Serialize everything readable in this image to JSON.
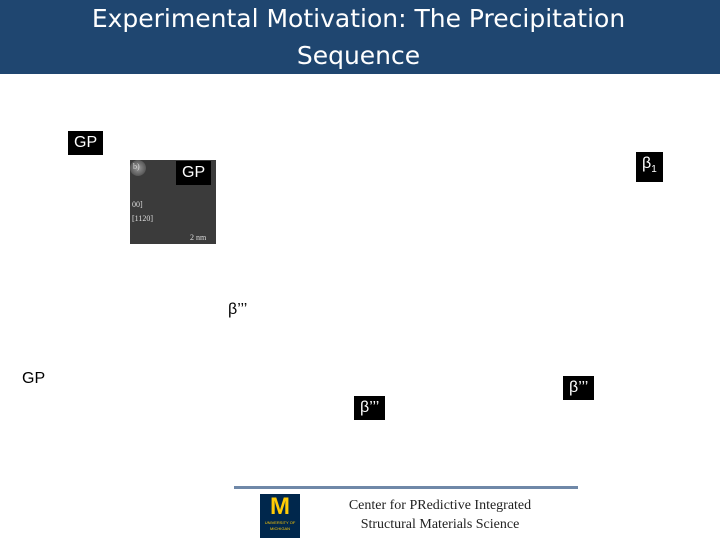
{
  "header": {
    "title_lines": [
      "Experimental Motivation: The Precipitation",
      "Sequence"
    ]
  },
  "labels": [
    {
      "text": "GP"
    },
    {
      "text": "GP"
    },
    {
      "text": "β",
      "subscript": "1"
    },
    {
      "text": "β’’’"
    },
    {
      "text": "GP"
    },
    {
      "text": "β’’’"
    },
    {
      "text": "β’’’"
    }
  ],
  "micrograph": {
    "labels": [
      "b)",
      "00]",
      "[1120]",
      "2 nm"
    ]
  },
  "footer": {
    "center_lines": [
      "Center for  PRedictive Integrated",
      "Structural Materials Science"
    ],
    "logo": {
      "letter": "M",
      "lines": [
        "UNIVERSITY OF",
        "MICHIGAN"
      ]
    }
  }
}
